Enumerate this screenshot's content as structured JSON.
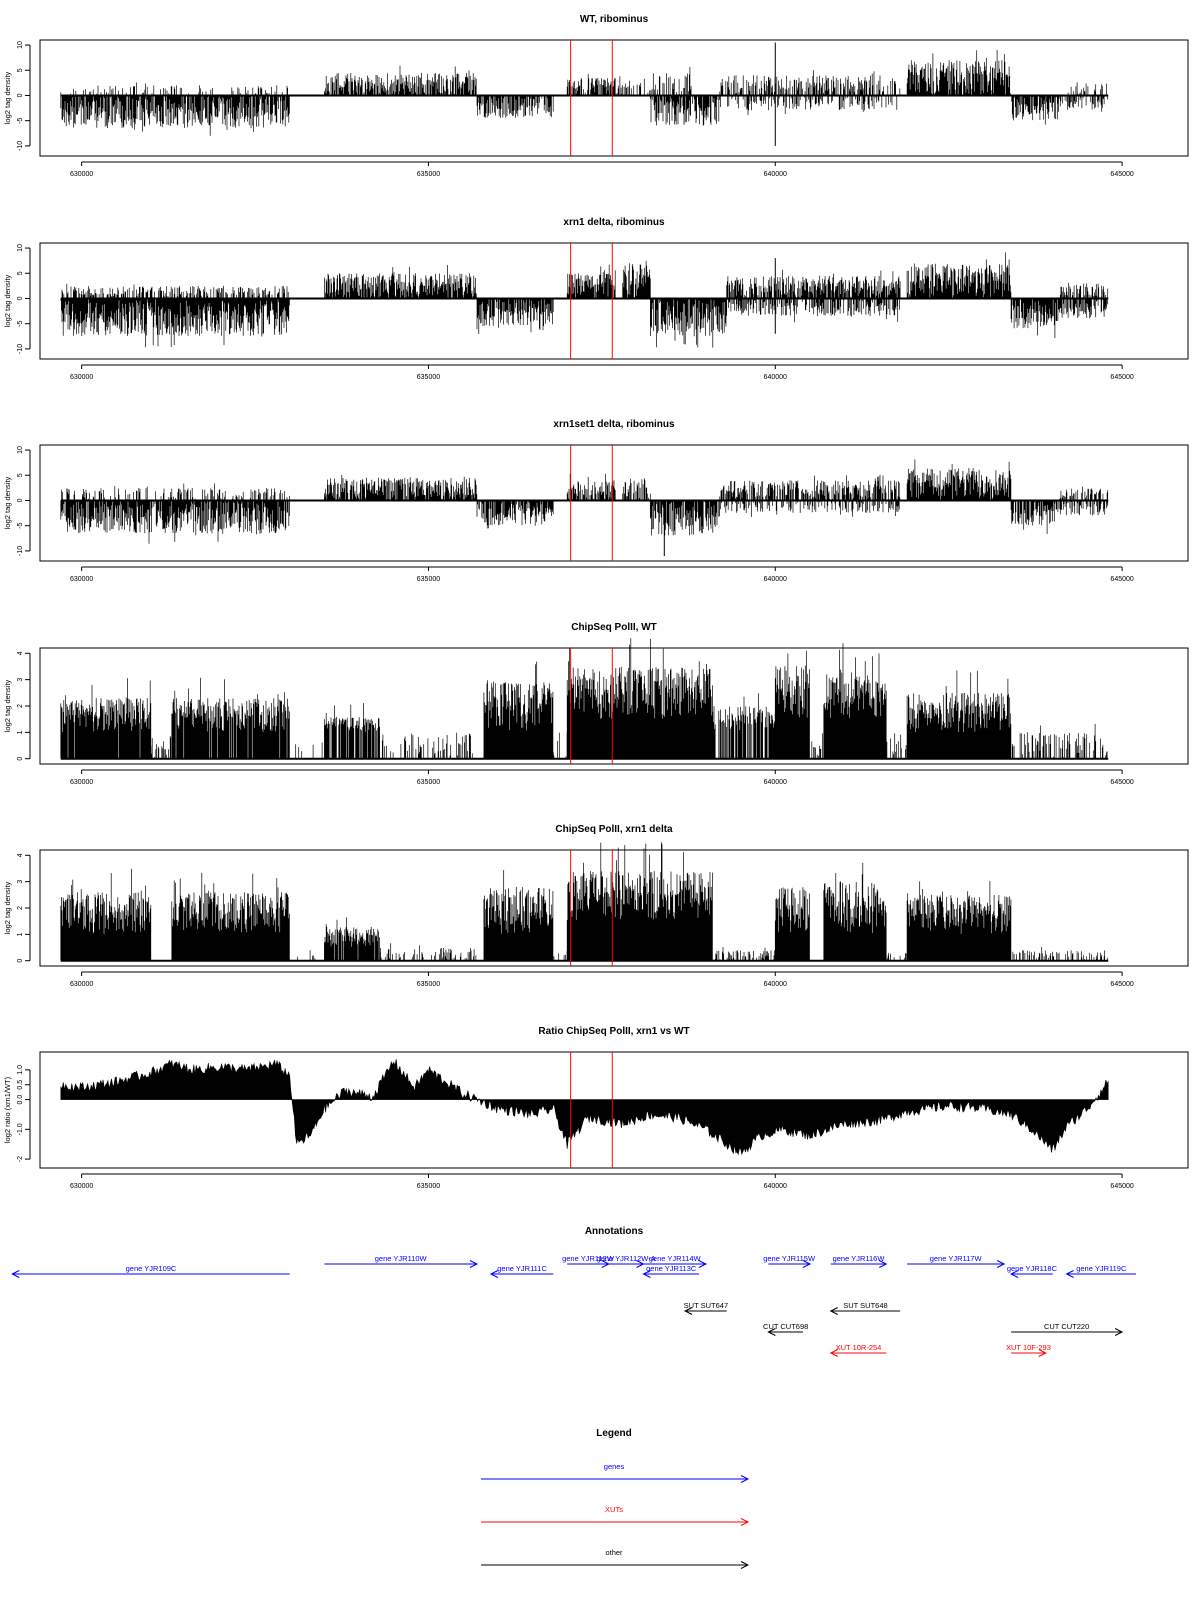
{
  "chart_data": {
    "panels": [
      {
        "type": "bar",
        "title": "WT, ribominus",
        "ylabel": "log2 tag density",
        "ylim": [
          -12,
          11
        ],
        "yticks": [
          "-10",
          "-5",
          "0",
          "5",
          "10"
        ],
        "yticks_values": [
          -10,
          -5,
          0,
          5,
          10
        ],
        "xlim": [
          629700,
          644800
        ],
        "segments": [
          {
            "from": 629700,
            "to": 633000,
            "side": "neg",
            "amp": 6.5,
            "density": 0.9
          },
          {
            "from": 629700,
            "to": 633000,
            "side": "pos",
            "amp": 2.0,
            "density": 0.25
          },
          {
            "from": 633500,
            "to": 635700,
            "side": "pos",
            "amp": 4.5,
            "density": 0.85
          },
          {
            "from": 635700,
            "to": 636800,
            "side": "neg",
            "amp": 4.5,
            "density": 0.85
          },
          {
            "from": 637000,
            "to": 637700,
            "side": "pos",
            "amp": 3.5,
            "density": 0.75
          },
          {
            "from": 637700,
            "to": 638000,
            "side": "pos",
            "amp": 3.0,
            "density": 0.3
          },
          {
            "from": 638000,
            "to": 638800,
            "side": "pos",
            "amp": 4.5,
            "density": 0.5
          },
          {
            "from": 638200,
            "to": 639200,
            "side": "neg",
            "amp": 6.0,
            "density": 0.85
          },
          {
            "from": 639200,
            "to": 641800,
            "side": "pos",
            "amp": 4.0,
            "density": 0.55
          },
          {
            "from": 639200,
            "to": 641800,
            "side": "neg",
            "amp": 3.0,
            "density": 0.35
          },
          {
            "from": 641900,
            "to": 643400,
            "side": "pos",
            "amp": 7.0,
            "density": 0.95
          },
          {
            "from": 643400,
            "to": 644100,
            "side": "neg",
            "amp": 5.0,
            "density": 0.85
          },
          {
            "from": 644100,
            "to": 644800,
            "side": "pos",
            "amp": 2.5,
            "density": 0.3
          },
          {
            "from": 644100,
            "to": 644800,
            "side": "neg",
            "amp": 3.0,
            "density": 0.4
          }
        ],
        "spikes": [
          [
            640000,
            10.5
          ],
          [
            640000,
            -10
          ]
        ]
      },
      {
        "type": "bar",
        "title": "xrn1 delta, ribominus",
        "ylabel": "log2 tag density",
        "ylim": [
          -12,
          11
        ],
        "yticks": [
          "-10",
          "-5",
          "0",
          "5",
          "10"
        ],
        "yticks_values": [
          -10,
          -5,
          0,
          5,
          10
        ],
        "xlim": [
          629700,
          644800
        ],
        "segments": [
          {
            "from": 629700,
            "to": 633000,
            "side": "neg",
            "amp": 7.5,
            "density": 1.0
          },
          {
            "from": 629700,
            "to": 633000,
            "side": "pos",
            "amp": 2.5,
            "density": 0.5
          },
          {
            "from": 633500,
            "to": 635700,
            "side": "pos",
            "amp": 5.0,
            "density": 0.95
          },
          {
            "from": 635700,
            "to": 636800,
            "side": "neg",
            "amp": 5.5,
            "density": 0.95
          },
          {
            "from": 637000,
            "to": 637700,
            "side": "pos",
            "amp": 5.0,
            "density": 0.95
          },
          {
            "from": 637800,
            "to": 638200,
            "side": "pos",
            "amp": 7.0,
            "density": 0.9
          },
          {
            "from": 638200,
            "to": 639300,
            "side": "neg",
            "amp": 7.5,
            "density": 0.95
          },
          {
            "from": 639300,
            "to": 641800,
            "side": "pos",
            "amp": 4.5,
            "density": 0.85
          },
          {
            "from": 639300,
            "to": 641800,
            "side": "neg",
            "amp": 3.5,
            "density": 0.6
          },
          {
            "from": 641900,
            "to": 643400,
            "side": "pos",
            "amp": 7.0,
            "density": 1.0
          },
          {
            "from": 643400,
            "to": 644100,
            "side": "neg",
            "amp": 6.0,
            "density": 0.95
          },
          {
            "from": 644100,
            "to": 644800,
            "side": "pos",
            "amp": 3.0,
            "density": 0.6
          },
          {
            "from": 644100,
            "to": 644800,
            "side": "neg",
            "amp": 4.0,
            "density": 0.7
          }
        ],
        "spikes": [
          [
            640000,
            8
          ],
          [
            640000,
            -7
          ]
        ]
      },
      {
        "type": "bar",
        "title": "xrn1set1 delta, ribominus",
        "ylabel": "log2 tag density",
        "ylim": [
          -12,
          11
        ],
        "yticks": [
          "-10",
          "-5",
          "0",
          "5",
          "10"
        ],
        "yticks_values": [
          -10,
          -5,
          0,
          5,
          10
        ],
        "xlim": [
          629700,
          644800
        ],
        "segments": [
          {
            "from": 629700,
            "to": 633000,
            "side": "neg",
            "amp": 6.5,
            "density": 0.9
          },
          {
            "from": 629700,
            "to": 633000,
            "side": "pos",
            "amp": 2.5,
            "density": 0.35
          },
          {
            "from": 633500,
            "to": 635700,
            "side": "pos",
            "amp": 4.5,
            "density": 0.9
          },
          {
            "from": 635700,
            "to": 636800,
            "side": "neg",
            "amp": 5.0,
            "density": 0.85
          },
          {
            "from": 637000,
            "to": 637700,
            "side": "pos",
            "amp": 4.0,
            "density": 0.8
          },
          {
            "from": 637800,
            "to": 638200,
            "side": "pos",
            "amp": 4.5,
            "density": 0.6
          },
          {
            "from": 638200,
            "to": 639200,
            "side": "neg",
            "amp": 7.0,
            "density": 0.85
          },
          {
            "from": 639200,
            "to": 641800,
            "side": "pos",
            "amp": 4.0,
            "density": 0.7
          },
          {
            "from": 639200,
            "to": 641800,
            "side": "neg",
            "amp": 2.5,
            "density": 0.35
          },
          {
            "from": 641900,
            "to": 643400,
            "side": "pos",
            "amp": 6.5,
            "density": 1.0
          },
          {
            "from": 643400,
            "to": 644100,
            "side": "neg",
            "amp": 5.0,
            "density": 0.8
          },
          {
            "from": 644100,
            "to": 644800,
            "side": "pos",
            "amp": 2.5,
            "density": 0.5
          },
          {
            "from": 644100,
            "to": 644800,
            "side": "neg",
            "amp": 3.0,
            "density": 0.5
          }
        ],
        "spikes": [
          [
            638400,
            -11
          ]
        ]
      },
      {
        "type": "bar",
        "title": "ChipSeq PolII, WT",
        "ylabel": "log2 tag density",
        "ylim": [
          -0.2,
          4.2
        ],
        "yticks": [
          "0",
          "1",
          "2",
          "3",
          "4"
        ],
        "yticks_values": [
          0,
          1,
          2,
          3,
          4
        ],
        "xlim": [
          629700,
          644800
        ],
        "segments": [
          {
            "from": 629700,
            "to": 631000,
            "side": "pos",
            "amp": 2.3,
            "density": 0.95,
            "floor": 1
          },
          {
            "from": 631000,
            "to": 631300,
            "side": "pos",
            "amp": 1.0,
            "density": 0.5
          },
          {
            "from": 631300,
            "to": 633000,
            "side": "pos",
            "amp": 2.3,
            "density": 0.95,
            "floor": 1
          },
          {
            "from": 633000,
            "to": 633500,
            "side": "pos",
            "amp": 1.0,
            "density": 0.12
          },
          {
            "from": 633500,
            "to": 634300,
            "side": "pos",
            "amp": 1.6,
            "density": 0.8,
            "floor": 1
          },
          {
            "from": 634300,
            "to": 635700,
            "side": "pos",
            "amp": 1.0,
            "density": 0.3
          },
          {
            "from": 635800,
            "to": 636800,
            "side": "pos",
            "amp": 3.0,
            "density": 1.0,
            "floor": 1
          },
          {
            "from": 636800,
            "to": 637000,
            "side": "pos",
            "amp": 1.0,
            "density": 0.3
          },
          {
            "from": 637000,
            "to": 639100,
            "side": "pos",
            "amp": 3.5,
            "density": 1.0,
            "floor": 1.5
          },
          {
            "from": 639100,
            "to": 640000,
            "side": "pos",
            "amp": 2.0,
            "density": 0.7,
            "floor": 1
          },
          {
            "from": 640000,
            "to": 640500,
            "side": "pos",
            "amp": 3.6,
            "density": 1.0,
            "floor": 1.5
          },
          {
            "from": 640500,
            "to": 640700,
            "side": "pos",
            "amp": 1.0,
            "density": 0.6
          },
          {
            "from": 640700,
            "to": 641600,
            "side": "pos",
            "amp": 3.3,
            "density": 1.0,
            "floor": 1.5
          },
          {
            "from": 641600,
            "to": 641900,
            "side": "pos",
            "amp": 1.0,
            "density": 0.4
          },
          {
            "from": 641900,
            "to": 643400,
            "side": "pos",
            "amp": 2.5,
            "density": 1.0,
            "floor": 1
          },
          {
            "from": 643400,
            "to": 644800,
            "side": "pos",
            "amp": 1.0,
            "density": 0.5
          }
        ],
        "spikes": []
      },
      {
        "type": "bar",
        "title": "ChipSeq PolII, xrn1 delta",
        "ylabel": "log2 tag density",
        "ylim": [
          -0.2,
          4.2
        ],
        "yticks": [
          "0",
          "1",
          "2",
          "3",
          "4"
        ],
        "yticks_values": [
          0,
          1,
          2,
          3,
          4
        ],
        "xlim": [
          629700,
          644800
        ],
        "segments": [
          {
            "from": 629700,
            "to": 631000,
            "side": "pos",
            "amp": 2.6,
            "density": 1.0,
            "floor": 1
          },
          {
            "from": 631300,
            "to": 633000,
            "side": "pos",
            "amp": 2.6,
            "density": 1.0,
            "floor": 1
          },
          {
            "from": 633000,
            "to": 633500,
            "side": "pos",
            "amp": 0.4,
            "density": 0.1
          },
          {
            "from": 633500,
            "to": 634300,
            "side": "pos",
            "amp": 1.3,
            "density": 0.9,
            "floor": 0.5
          },
          {
            "from": 634300,
            "to": 635700,
            "side": "pos",
            "amp": 0.5,
            "density": 0.35
          },
          {
            "from": 635800,
            "to": 636800,
            "side": "pos",
            "amp": 2.8,
            "density": 1.0,
            "floor": 1
          },
          {
            "from": 636800,
            "to": 637000,
            "side": "pos",
            "amp": 0.4,
            "density": 0.3
          },
          {
            "from": 637000,
            "to": 639100,
            "side": "pos",
            "amp": 3.4,
            "density": 1.0,
            "floor": 1.5
          },
          {
            "from": 639100,
            "to": 640000,
            "side": "pos",
            "amp": 0.4,
            "density": 0.4
          },
          {
            "from": 640000,
            "to": 640500,
            "side": "pos",
            "amp": 2.8,
            "density": 1.0,
            "floor": 1
          },
          {
            "from": 640700,
            "to": 641600,
            "side": "pos",
            "amp": 3.0,
            "density": 1.0,
            "floor": 1
          },
          {
            "from": 641600,
            "to": 641900,
            "side": "pos",
            "amp": 0.4,
            "density": 0.3
          },
          {
            "from": 641900,
            "to": 643400,
            "side": "pos",
            "amp": 2.5,
            "density": 1.0,
            "floor": 1
          },
          {
            "from": 643400,
            "to": 644800,
            "side": "pos",
            "amp": 0.4,
            "density": 0.4
          }
        ],
        "spikes": []
      },
      {
        "type": "area",
        "title": "Ratio ChipSeq PolII, xrn1 vs WT",
        "ylabel": "log2 ratio (xrn1/WT)",
        "ylim": [
          -2.3,
          1.6
        ],
        "yticks": [
          "-2",
          "-1.0",
          "0.0",
          "0.5",
          "1.0"
        ],
        "yticks_values": [
          -2,
          -1,
          0,
          0.5,
          1
        ],
        "xlim": [
          629700,
          644800
        ],
        "x": [
          629700,
          630000,
          630500,
          631000,
          631300,
          631600,
          632000,
          632400,
          632800,
          633000,
          633100,
          633300,
          633500,
          633800,
          634200,
          634500,
          634800,
          635000,
          635500,
          636000,
          636500,
          636800,
          637000,
          637300,
          637800,
          638200,
          638600,
          639000,
          639500,
          639800,
          640100,
          640500,
          641000,
          641500,
          641900,
          642500,
          643000,
          643400,
          643700,
          644000,
          644200,
          644500,
          644800
        ],
        "y": [
          0.5,
          0.4,
          0.6,
          0.9,
          1.2,
          1.0,
          1.1,
          1.0,
          1.2,
          0.8,
          -1.5,
          -1.2,
          -0.3,
          0.3,
          0.1,
          1.3,
          0.4,
          1.0,
          0.2,
          -0.3,
          -0.5,
          -0.3,
          -1.5,
          -0.6,
          -0.8,
          -0.5,
          -0.6,
          -1.0,
          -1.8,
          -1.2,
          -1.0,
          -1.2,
          -0.8,
          -0.7,
          -0.4,
          -0.2,
          -0.3,
          -0.5,
          -1.0,
          -1.7,
          -0.9,
          -0.3,
          0.6
        ]
      }
    ],
    "xticks": [
      "630000",
      "635000",
      "640000",
      "645000"
    ],
    "xticks_values": [
      630000,
      635000,
      640000,
      645000
    ],
    "red_lines_x": [
      637050,
      637650
    ],
    "annotations": {
      "title": "Annotations",
      "items": [
        {
          "label": "gene YJR109C",
          "from": 633000,
          "to": 629000,
          "color": "#0000ff",
          "row": 1
        },
        {
          "label": "gene YJR110W",
          "from": 633500,
          "to": 635700,
          "color": "#0000ff",
          "row": 0
        },
        {
          "label": "gene YJR111C",
          "from": 636800,
          "to": 635900,
          "color": "#0000ff",
          "row": 1
        },
        {
          "label": "gene YJR112W",
          "from": 637000,
          "to": 637600,
          "color": "#0000ff",
          "row": 0
        },
        {
          "label": "gene YJR112W-A",
          "from": 637600,
          "to": 638100,
          "color": "#0000ff",
          "row": 0
        },
        {
          "label": "gene YJR113C",
          "from": 638900,
          "to": 638100,
          "color": "#0000ff",
          "row": 1
        },
        {
          "label": "gene YJR114W",
          "from": 638100,
          "to": 639000,
          "color": "#0000ff",
          "row": 0
        },
        {
          "label": "gene YJR115W",
          "from": 639900,
          "to": 640500,
          "color": "#0000ff",
          "row": 0
        },
        {
          "label": "gene YJR116W",
          "from": 640800,
          "to": 641600,
          "color": "#0000ff",
          "row": 0
        },
        {
          "label": "gene YJR117W",
          "from": 641900,
          "to": 643300,
          "color": "#0000ff",
          "row": 0
        },
        {
          "label": "gene YJR118C",
          "from": 644000,
          "to": 643400,
          "color": "#0000ff",
          "row": 1
        },
        {
          "label": "gene YJR119C",
          "from": 645200,
          "to": 644200,
          "color": "#0000ff",
          "row": 1
        },
        {
          "label": "SUT SUT647",
          "from": 639300,
          "to": 638700,
          "color": "#000000",
          "row": 2
        },
        {
          "label": "SUT SUT648",
          "from": 641800,
          "to": 640800,
          "color": "#000000",
          "row": 2
        },
        {
          "label": "CUT CUT698",
          "from": 640400,
          "to": 639900,
          "color": "#000000",
          "row": 3
        },
        {
          "label": "CUT CUT220",
          "from": 643400,
          "to": 645000,
          "color": "#000000",
          "row": 3
        },
        {
          "label": "XUT 10R-254",
          "from": 641600,
          "to": 640800,
          "color": "#ff0000",
          "row": 4
        },
        {
          "label": "XUT 10F-293",
          "from": 643400,
          "to": 643900,
          "color": "#ff0000",
          "row": 4
        }
      ]
    },
    "legend": {
      "title": "Legend",
      "items": [
        {
          "label": "genes",
          "color": "#0000ff"
        },
        {
          "label": "XUTs",
          "color": "#ff0000"
        },
        {
          "label": "other",
          "color": "#000000"
        }
      ]
    }
  }
}
